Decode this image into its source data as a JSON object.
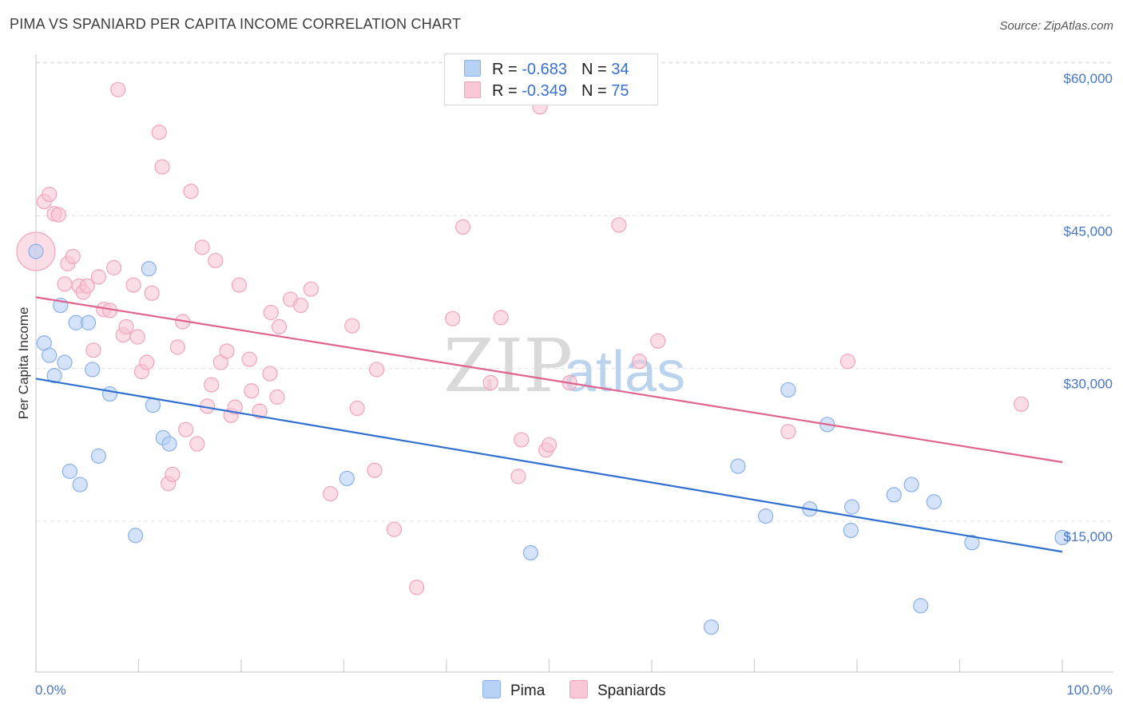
{
  "header": {
    "title": "PIMA VS SPANIARD PER CAPITA INCOME CORRELATION CHART",
    "source": "Source: ZipAtlas.com"
  },
  "watermark": {
    "part1": "ZIP",
    "part2": "atlas"
  },
  "legend_top": {
    "rows": [
      {
        "r_label": "R = ",
        "r_value": "-0.683",
        "n_label": "N = ",
        "n_value": "34"
      },
      {
        "r_label": "R = ",
        "r_value": "-0.349",
        "n_label": "N = ",
        "n_value": "75"
      }
    ]
  },
  "legend_bottom": {
    "items": [
      "Pima",
      "Spaniards"
    ]
  },
  "colors": {
    "pima_fill": "#b7d1f5",
    "pima_stroke": "#8ab0e8",
    "pima_line": "#2e6fd0",
    "spaniard_fill": "#f9c6d6",
    "spaniard_stroke": "#f0a3bd",
    "spaniard_line": "#e0628e",
    "grid": "#e3e3e3",
    "tick_label": "#4a77c4"
  },
  "chart_data": {
    "type": "scatter",
    "title": "PIMA VS SPANIARD PER CAPITA INCOME CORRELATION CHART",
    "ylabel": "Per Capita Income",
    "xlabel": "",
    "xlim": [
      0,
      100
    ],
    "ylim": [
      0,
      62000
    ],
    "x_tick_labels": [
      "0.0%",
      "100.0%"
    ],
    "y_ticks": [
      15000,
      30000,
      45000,
      60000
    ],
    "y_tick_labels": [
      "$15,000",
      "$30,000",
      "$45,000",
      "$60,000"
    ],
    "grid": true,
    "series": [
      {
        "name": "Pima",
        "trend": {
          "x": [
            0,
            100
          ],
          "y": [
            29000,
            12000
          ]
        },
        "points": [
          {
            "x": 0.0,
            "y": 41500
          },
          {
            "x": 0.8,
            "y": 32500
          },
          {
            "x": 1.3,
            "y": 31300
          },
          {
            "x": 1.8,
            "y": 29300
          },
          {
            "x": 2.4,
            "y": 36200
          },
          {
            "x": 2.8,
            "y": 30600
          },
          {
            "x": 3.3,
            "y": 19900
          },
          {
            "x": 3.9,
            "y": 34500
          },
          {
            "x": 4.3,
            "y": 18600
          },
          {
            "x": 5.1,
            "y": 34500
          },
          {
            "x": 5.5,
            "y": 29900
          },
          {
            "x": 6.1,
            "y": 21400
          },
          {
            "x": 7.2,
            "y": 27500
          },
          {
            "x": 9.7,
            "y": 13600
          },
          {
            "x": 11.0,
            "y": 39800
          },
          {
            "x": 11.4,
            "y": 26400
          },
          {
            "x": 12.4,
            "y": 23200
          },
          {
            "x": 13.0,
            "y": 22600
          },
          {
            "x": 30.3,
            "y": 19200
          },
          {
            "x": 48.2,
            "y": 11900
          },
          {
            "x": 65.8,
            "y": 4600
          },
          {
            "x": 68.4,
            "y": 20400
          },
          {
            "x": 71.1,
            "y": 15500
          },
          {
            "x": 73.3,
            "y": 27900
          },
          {
            "x": 75.4,
            "y": 16200
          },
          {
            "x": 77.1,
            "y": 24500
          },
          {
            "x": 79.4,
            "y": 14100
          },
          {
            "x": 79.5,
            "y": 16400
          },
          {
            "x": 83.6,
            "y": 17600
          },
          {
            "x": 85.3,
            "y": 18600
          },
          {
            "x": 86.2,
            "y": 6700
          },
          {
            "x": 87.5,
            "y": 16900
          },
          {
            "x": 91.2,
            "y": 12900
          },
          {
            "x": 100.0,
            "y": 13400
          }
        ]
      },
      {
        "name": "Spaniards",
        "trend": {
          "x": [
            0,
            100
          ],
          "y": [
            37000,
            20800
          ]
        },
        "points": [
          {
            "x": 0.0,
            "y": 41500
          },
          {
            "x": 0.8,
            "y": 46400
          },
          {
            "x": 1.3,
            "y": 47100
          },
          {
            "x": 1.8,
            "y": 45200
          },
          {
            "x": 2.2,
            "y": 45100
          },
          {
            "x": 2.8,
            "y": 38300
          },
          {
            "x": 3.1,
            "y": 40300
          },
          {
            "x": 3.6,
            "y": 41000
          },
          {
            "x": 4.2,
            "y": 38100
          },
          {
            "x": 4.6,
            "y": 37500
          },
          {
            "x": 5.0,
            "y": 38100
          },
          {
            "x": 5.6,
            "y": 31800
          },
          {
            "x": 6.1,
            "y": 39000
          },
          {
            "x": 6.6,
            "y": 35800
          },
          {
            "x": 7.2,
            "y": 35700
          },
          {
            "x": 7.6,
            "y": 39900
          },
          {
            "x": 8.0,
            "y": 57400
          },
          {
            "x": 8.5,
            "y": 33300
          },
          {
            "x": 8.8,
            "y": 34100
          },
          {
            "x": 9.5,
            "y": 38200
          },
          {
            "x": 9.9,
            "y": 33100
          },
          {
            "x": 10.3,
            "y": 29700
          },
          {
            "x": 10.8,
            "y": 30600
          },
          {
            "x": 11.3,
            "y": 37400
          },
          {
            "x": 12.0,
            "y": 53200
          },
          {
            "x": 12.3,
            "y": 49800
          },
          {
            "x": 12.9,
            "y": 18700
          },
          {
            "x": 13.3,
            "y": 19600
          },
          {
            "x": 13.8,
            "y": 32100
          },
          {
            "x": 14.3,
            "y": 34600
          },
          {
            "x": 14.6,
            "y": 24000
          },
          {
            "x": 15.1,
            "y": 47400
          },
          {
            "x": 15.7,
            "y": 22600
          },
          {
            "x": 16.2,
            "y": 41900
          },
          {
            "x": 16.7,
            "y": 26300
          },
          {
            "x": 17.1,
            "y": 28400
          },
          {
            "x": 17.5,
            "y": 40600
          },
          {
            "x": 18.0,
            "y": 30600
          },
          {
            "x": 18.6,
            "y": 31700
          },
          {
            "x": 19.0,
            "y": 25400
          },
          {
            "x": 19.4,
            "y": 26200
          },
          {
            "x": 19.8,
            "y": 38200
          },
          {
            "x": 20.8,
            "y": 30900
          },
          {
            "x": 21.0,
            "y": 27800
          },
          {
            "x": 21.8,
            "y": 25800
          },
          {
            "x": 22.8,
            "y": 29500
          },
          {
            "x": 22.9,
            "y": 35500
          },
          {
            "x": 23.5,
            "y": 27200
          },
          {
            "x": 23.7,
            "y": 34100
          },
          {
            "x": 24.8,
            "y": 36800
          },
          {
            "x": 25.8,
            "y": 36200
          },
          {
            "x": 26.8,
            "y": 37800
          },
          {
            "x": 28.7,
            "y": 17700
          },
          {
            "x": 30.8,
            "y": 34200
          },
          {
            "x": 31.3,
            "y": 26100
          },
          {
            "x": 33.0,
            "y": 20000
          },
          {
            "x": 33.2,
            "y": 29900
          },
          {
            "x": 34.9,
            "y": 14200
          },
          {
            "x": 37.1,
            "y": 8500
          },
          {
            "x": 40.6,
            "y": 34900
          },
          {
            "x": 41.6,
            "y": 43900
          },
          {
            "x": 44.3,
            "y": 28600
          },
          {
            "x": 45.3,
            "y": 35000
          },
          {
            "x": 47.0,
            "y": 19400
          },
          {
            "x": 47.3,
            "y": 23000
          },
          {
            "x": 49.1,
            "y": 55700
          },
          {
            "x": 49.7,
            "y": 22000
          },
          {
            "x": 50.0,
            "y": 22500
          },
          {
            "x": 52.0,
            "y": 28600
          },
          {
            "x": 56.8,
            "y": 44100
          },
          {
            "x": 58.8,
            "y": 30700
          },
          {
            "x": 60.6,
            "y": 32700
          },
          {
            "x": 73.3,
            "y": 23800
          },
          {
            "x": 79.1,
            "y": 30700
          },
          {
            "x": 96.0,
            "y": 26500
          }
        ]
      }
    ]
  }
}
